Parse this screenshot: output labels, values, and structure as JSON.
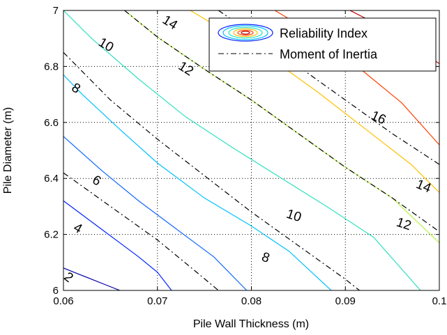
{
  "chart_data": {
    "type": "contour",
    "xlabel": "Pile Wall Thickness (m)",
    "ylabel": "Pile Diameter (m)",
    "xlim": [
      0.06,
      0.1
    ],
    "ylim": [
      6,
      7
    ],
    "x_ticks": [
      0.06,
      0.07,
      0.08,
      0.09,
      0.1
    ],
    "x_tick_labels": [
      "0.06",
      "0.07",
      "0.08",
      "0.09",
      "0.1"
    ],
    "y_ticks": [
      6,
      6.2,
      6.4,
      6.6,
      6.8,
      7
    ],
    "y_tick_labels": [
      "6",
      "6.2",
      "6.4",
      "6.6",
      "6.8",
      "7"
    ],
    "grid": true,
    "legend": {
      "placement": "top-right",
      "entries": [
        "Reliability Index",
        "Moment of Inertia"
      ]
    },
    "series": [
      {
        "name": "Reliability Index",
        "style": "solid-contours",
        "levels": [
          {
            "level": 2,
            "label": "2",
            "color": "#0000a8",
            "points": [
              [
                0.06,
                6.08
              ],
              [
                0.0615,
                6.06
              ],
              [
                0.063,
                6.04
              ],
              [
                0.0645,
                6.02
              ],
              [
                0.066,
                6.0
              ]
            ]
          },
          {
            "level": 4,
            "label": "4",
            "color": "#0020ff",
            "points": [
              [
                0.06,
                6.32
              ],
              [
                0.062,
                6.27
              ],
              [
                0.064,
                6.22
              ],
              [
                0.066,
                6.17
              ],
              [
                0.068,
                6.12
              ],
              [
                0.07,
                6.065
              ],
              [
                0.0715,
                6.0
              ]
            ]
          },
          {
            "level": 6,
            "label": "6",
            "color": "#1068ff",
            "points": [
              [
                0.06,
                6.55
              ],
              [
                0.064,
                6.43
              ],
              [
                0.068,
                6.32
              ],
              [
                0.072,
                6.22
              ],
              [
                0.076,
                6.12
              ],
              [
                0.0795,
                6.0
              ]
            ]
          },
          {
            "level": 8,
            "label": "8",
            "color": "#00c0ff",
            "points": [
              [
                0.06,
                6.77
              ],
              [
                0.062,
                6.7
              ],
              [
                0.066,
                6.575
              ],
              [
                0.07,
                6.455
              ],
              [
                0.075,
                6.33
              ],
              [
                0.08,
                6.23
              ],
              [
                0.084,
                6.14
              ],
              [
                0.0885,
                6.0
              ]
            ]
          },
          {
            "level": 10,
            "label": "10",
            "color": "#30e0c0",
            "points": [
              [
                0.06,
                7.0
              ],
              [
                0.063,
                6.9
              ],
              [
                0.068,
                6.755
              ],
              [
                0.073,
                6.62
              ],
              [
                0.078,
                6.51
              ],
              [
                0.083,
                6.405
              ],
              [
                0.088,
                6.3
              ],
              [
                0.093,
                6.19
              ],
              [
                0.098,
                6.0
              ]
            ]
          },
          {
            "level": 12,
            "label": "12",
            "color": "#b8f040",
            "points": [
              [
                0.0665,
                7.0
              ],
              [
                0.07,
                6.905
              ],
              [
                0.075,
                6.79
              ],
              [
                0.08,
                6.68
              ],
              [
                0.085,
                6.56
              ],
              [
                0.09,
                6.44
              ],
              [
                0.095,
                6.33
              ],
              [
                0.1,
                6.17
              ]
            ]
          },
          {
            "level": 14,
            "label": "14",
            "color": "#ffc000",
            "points": [
              [
                0.0735,
                7.0
              ],
              [
                0.077,
                6.93
              ],
              [
                0.082,
                6.83
              ],
              [
                0.087,
                6.71
              ],
              [
                0.092,
                6.58
              ],
              [
                0.097,
                6.45
              ],
              [
                0.1,
                6.35
              ]
            ]
          },
          {
            "level": 16,
            "label": "16",
            "color": "#ff4000",
            "points": [
              [
                0.0825,
                7.0
              ],
              [
                0.087,
                6.91
              ],
              [
                0.092,
                6.78
              ],
              [
                0.096,
                6.67
              ],
              [
                0.1,
                6.52
              ]
            ]
          },
          {
            "level": 18,
            "label": "",
            "color": "#c00000",
            "points": [
              [
                0.0905,
                7.0
              ],
              [
                0.094,
                6.94
              ],
              [
                0.097,
                6.88
              ],
              [
                0.1,
                6.81
              ]
            ]
          }
        ]
      },
      {
        "name": "Moment of Inertia",
        "style": "dash-dot-contours",
        "color": "#000000",
        "levels": [
          {
            "label": "",
            "points": [
              [
                0.06,
                6.42
              ],
              [
                0.065,
                6.3
              ],
              [
                0.07,
                6.18
              ],
              [
                0.074,
                6.07
              ],
              [
                0.0765,
                6.0
              ]
            ]
          },
          {
            "label": "",
            "points": [
              [
                0.06,
                6.85
              ],
              [
                0.065,
                6.68
              ],
              [
                0.07,
                6.54
              ],
              [
                0.075,
                6.41
              ],
              [
                0.08,
                6.28
              ],
              [
                0.085,
                6.16
              ],
              [
                0.09,
                6.04
              ],
              [
                0.0915,
                6.0
              ]
            ]
          },
          {
            "label": "",
            "points": [
              [
                0.0665,
                7.0
              ],
              [
                0.07,
                6.905
              ],
              [
                0.075,
                6.79
              ],
              [
                0.08,
                6.68
              ],
              [
                0.085,
                6.56
              ],
              [
                0.09,
                6.44
              ],
              [
                0.095,
                6.33
              ],
              [
                0.1,
                6.21
              ]
            ]
          },
          {
            "label": "",
            "points": [
              [
                0.0765,
                7.0
              ],
              [
                0.08,
                6.92
              ],
              [
                0.085,
                6.8
              ],
              [
                0.09,
                6.68
              ],
              [
                0.095,
                6.56
              ],
              [
                0.1,
                6.45
              ]
            ]
          }
        ]
      }
    ],
    "contour_labels": [
      {
        "text": "2",
        "x": 0.0605,
        "y": 6.045,
        "angle": 38
      },
      {
        "text": "4",
        "x": 0.0615,
        "y": 6.22,
        "angle": 30
      },
      {
        "text": "6",
        "x": 0.0635,
        "y": 6.39,
        "angle": 30
      },
      {
        "text": "8",
        "x": 0.0613,
        "y": 6.72,
        "angle": 32
      },
      {
        "text": "8",
        "x": 0.0815,
        "y": 6.115,
        "angle": 20
      },
      {
        "text": "10",
        "x": 0.0645,
        "y": 6.875,
        "angle": 30
      },
      {
        "text": "10",
        "x": 0.0845,
        "y": 6.265,
        "angle": 18
      },
      {
        "text": "12",
        "x": 0.073,
        "y": 6.79,
        "angle": 32
      },
      {
        "text": "12",
        "x": 0.0962,
        "y": 6.235,
        "angle": 18
      },
      {
        "text": "14",
        "x": 0.0713,
        "y": 6.955,
        "angle": 32
      },
      {
        "text": "14",
        "x": 0.0983,
        "y": 6.37,
        "angle": 22
      },
      {
        "text": "16",
        "x": 0.0935,
        "y": 6.615,
        "angle": 25
      }
    ]
  }
}
